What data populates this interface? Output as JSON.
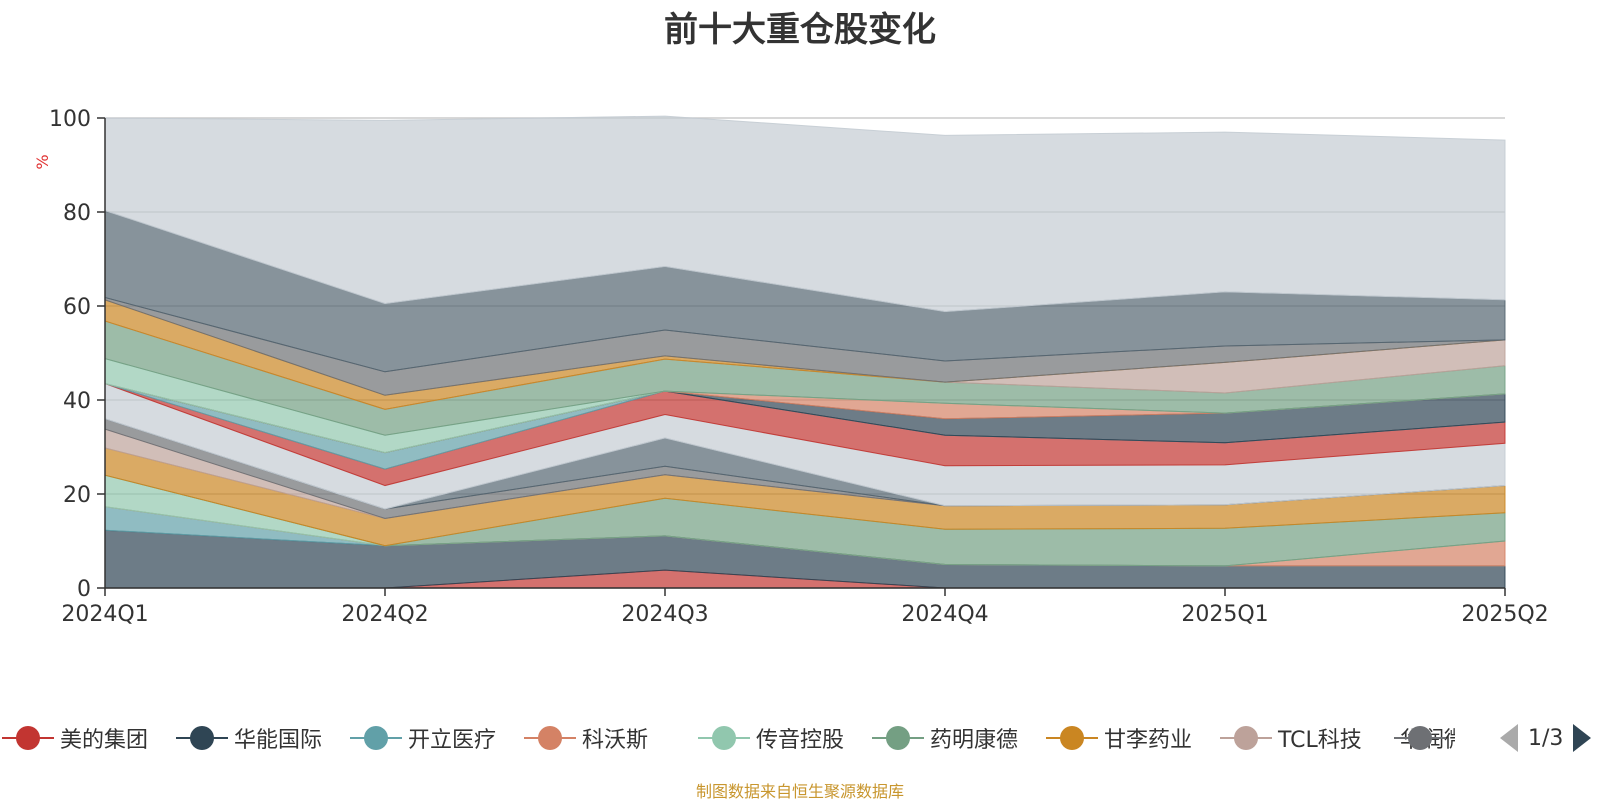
{
  "chart_data": {
    "type": "area",
    "stacked": true,
    "title": "前十大重仓股变化",
    "ylabel": "%",
    "ylim": [
      0,
      100
    ],
    "yticks": [
      0,
      20,
      40,
      60,
      80,
      100
    ],
    "categories": [
      "2024Q1",
      "2024Q2",
      "2024Q3",
      "2024Q4",
      "2025Q1",
      "2025Q2"
    ],
    "grid": true,
    "source": "制图数据来自恒生聚源数据库",
    "series": [
      {
        "name": "美的集团",
        "color": "#c23531",
        "values": [
          0,
          0,
          3.8,
          0,
          0,
          0
        ]
      },
      {
        "name": "华能国际",
        "color": "#2f4554",
        "values": [
          12.3,
          9.0,
          7.3,
          5.0,
          4.7,
          4.7
        ]
      },
      {
        "name": "开立医疗",
        "color": "#61a0a8",
        "values": [
          5.0,
          0,
          0,
          0,
          0,
          0
        ]
      },
      {
        "name": "科沃斯",
        "color": "#d48265",
        "values": [
          0,
          0,
          0,
          0,
          0,
          5.3
        ]
      },
      {
        "name": "传音控股",
        "color": "#91c7ae",
        "values": [
          6.7,
          0,
          0,
          0,
          0,
          0
        ]
      },
      {
        "name": "药明康德",
        "color": "#749f83",
        "values": [
          0,
          0,
          8.0,
          7.5,
          8.0,
          6.0
        ]
      },
      {
        "name": "甘李药业",
        "color": "#ca8622",
        "values": [
          5.8,
          5.8,
          5.0,
          5.0,
          5.0,
          5.8
        ]
      },
      {
        "name": "TCL科技",
        "color": "#bda29a",
        "values": [
          4.0,
          0,
          0,
          0,
          0,
          0
        ]
      },
      {
        "name": "华润微",
        "color": "#6e7074",
        "values": [
          2.2,
          2.0,
          1.8,
          0,
          0,
          0
        ]
      },
      {
        "name": "",
        "color": "#546570",
        "values": [
          0,
          0,
          6.0,
          0,
          0,
          0
        ]
      },
      {
        "name": "",
        "color": "#c4ccd3",
        "values": [
          7.5,
          5.0,
          5.0,
          8.5,
          8.5,
          9.0
        ]
      },
      {
        "name": "",
        "color": "#c23531",
        "values": [
          0,
          3.5,
          5.0,
          6.5,
          4.7,
          4.5
        ]
      },
      {
        "name": "",
        "color": "#61a0a8",
        "values": [
          0,
          3.5,
          0,
          0,
          0,
          0
        ]
      },
      {
        "name": "",
        "color": "#2f4554",
        "values": [
          0,
          0,
          0,
          3.5,
          6.3,
          6.0
        ]
      },
      {
        "name": "",
        "color": "#d48265",
        "values": [
          0,
          0,
          0,
          3.3,
          0,
          0
        ]
      },
      {
        "name": "",
        "color": "#91c7ae",
        "values": [
          5.3,
          3.7,
          0,
          0,
          0,
          0
        ]
      },
      {
        "name": "",
        "color": "#749f83",
        "values": [
          8.0,
          5.5,
          6.8,
          4.5,
          4.3,
          6.0
        ]
      },
      {
        "name": "",
        "color": "#bda29a",
        "values": [
          0,
          0,
          0,
          0,
          6.5,
          5.5
        ]
      },
      {
        "name": "",
        "color": "#ca8622",
        "values": [
          4.5,
          3.0,
          0.7,
          0,
          0,
          0
        ]
      },
      {
        "name": "",
        "color": "#6e7074",
        "values": [
          0.5,
          5.0,
          5.5,
          4.5,
          3.5,
          0
        ]
      },
      {
        "name": "",
        "color": "#546570",
        "values": [
          18.5,
          14.5,
          13.5,
          10.5,
          11.5,
          8.5
        ]
      },
      {
        "name": "",
        "color": "#c4ccd3",
        "values": [
          19.7,
          39.0,
          32.0,
          37.5,
          34.0,
          34.0
        ]
      }
    ]
  },
  "legend": {
    "items": [
      "美的集团",
      "华能国际",
      "开立医疗",
      "科沃斯",
      "传音控股",
      "药明康德",
      "甘李药业",
      "TCL科技",
      "华润微"
    ],
    "page_text": "1/3"
  }
}
